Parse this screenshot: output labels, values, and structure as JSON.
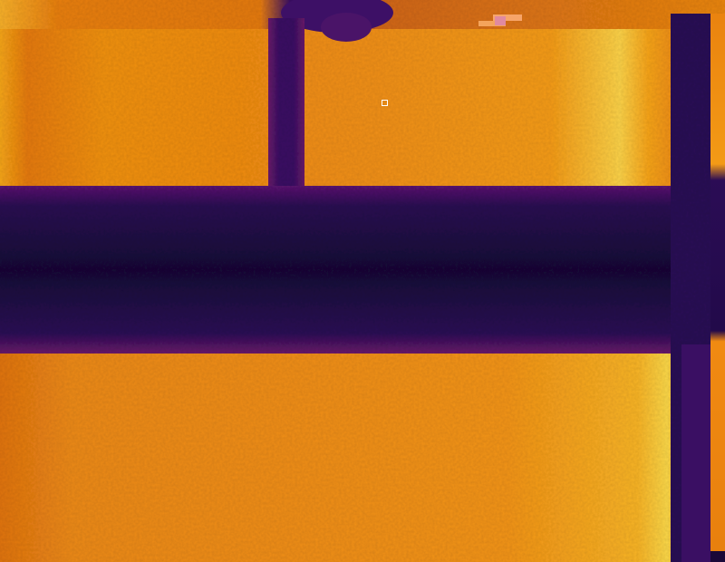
{
  "image": {
    "kind": "thermal-image",
    "palette": "inferno",
    "colors": {
      "cold": "#1e0b45",
      "cool": "#3b0f6e",
      "mid": "#c1480a",
      "warm": "#f08a10",
      "hot": "#fbd94a",
      "marker": "#ffffff"
    }
  },
  "overlay": {
    "spot_marker_icon": "square-crosshair"
  }
}
